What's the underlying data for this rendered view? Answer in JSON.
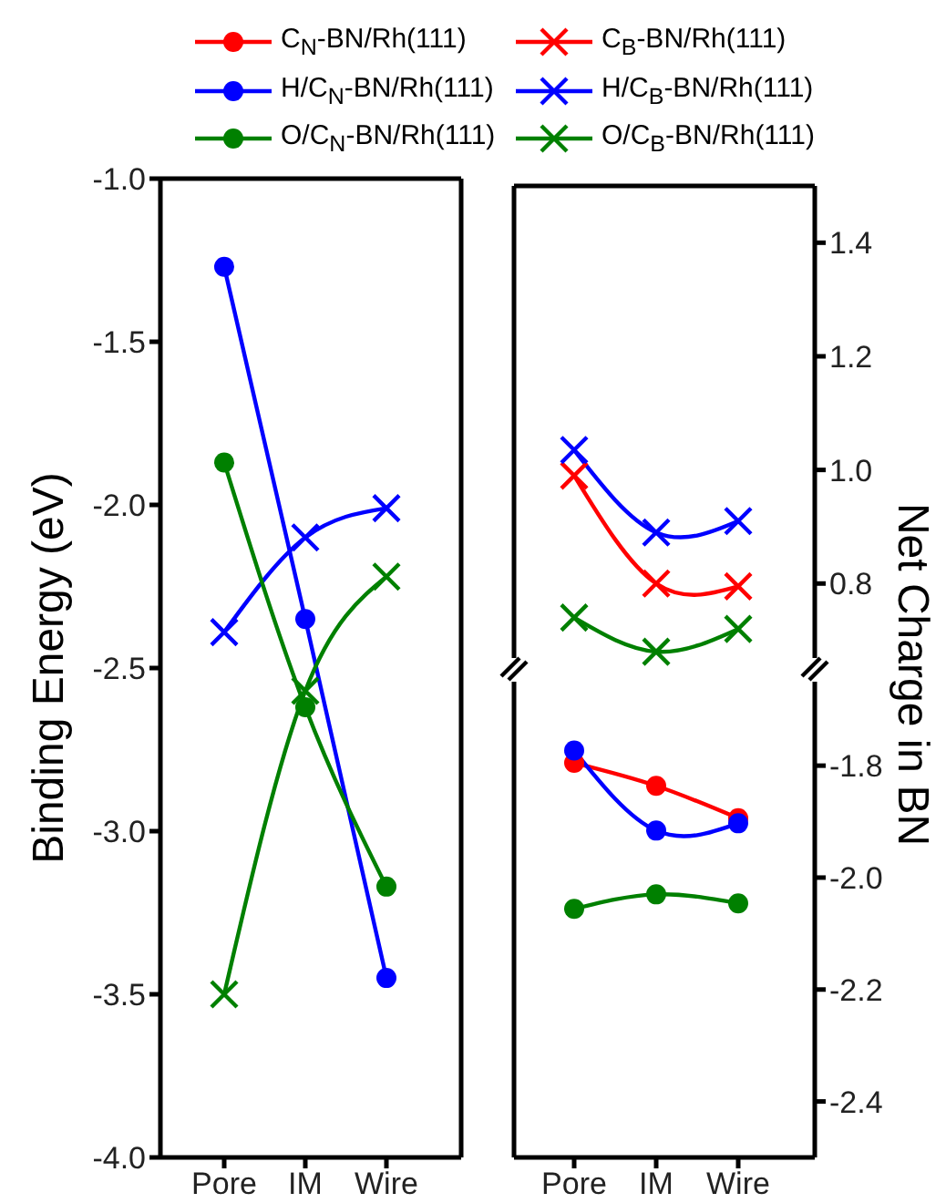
{
  "chart_data": [
    {
      "type": "line",
      "ylabel": "Binding Energy (eV)",
      "categories": [
        "Pore",
        "IM",
        "Wire"
      ],
      "ylim": [
        -4,
        -1
      ],
      "yticks": [
        {
          "value": -1,
          "label": "-1.0"
        },
        -1.5,
        {
          "value": -2,
          "label": "-2.0"
        },
        -2.5,
        {
          "value": -3,
          "label": "-3.0"
        },
        -3.5,
        {
          "value": -4,
          "label": "-4.0"
        }
      ],
      "grid": false,
      "line_style": "solid",
      "series": [
        {
          "color": "#0000ff",
          "marker": "circle",
          "values": [
            -1.27,
            -2.35,
            -3.45
          ]
        },
        {
          "color": "#0000ff",
          "marker": "cross",
          "values": [
            -2.39,
            -2.1,
            -2.01
          ]
        },
        {
          "color": "#008000",
          "marker": "circle",
          "values": [
            -1.87,
            -2.62,
            -3.17
          ]
        },
        {
          "color": "#008000",
          "marker": "cross",
          "values": [
            -3.5,
            -2.57,
            -2.22
          ]
        }
      ]
    },
    {
      "type": "line",
      "ylabel": "Net Charge in BN",
      "ylim": [
        0.64,
        1.5
      ],
      "yticks": [
        {
          "value": 0.8,
          "label": "0.8"
        },
        {
          "value": 1,
          "label": "1.0"
        },
        {
          "value": 1.2,
          "label": "1.2"
        },
        {
          "value": 1.4,
          "label": "1.4"
        }
      ],
      "tick_labels": "y",
      "grid": false,
      "legend": "top",
      "line_style": "solid",
      "series": [
        {
          "name": "C$_{B}$-BN/Rh(111)",
          "color": "#ff0000",
          "marker": "cross",
          "values": [
            0.99,
            0.8,
            0.795
          ]
        },
        {
          "name": "H/C$_{B}$-BN/Rh(111)",
          "color": "#0000ff",
          "marker": "cross",
          "values": [
            1.035,
            0.89,
            0.91
          ]
        },
        {
          "name": "O/C$_{B}$-BN/Rh(111)",
          "color": "#008000",
          "marker": "cross",
          "values": [
            0.74,
            0.68,
            0.72
          ]
        }
      ]
    },
    {
      "type": "line",
      "categories": [
        "Pore",
        "IM",
        "Wire"
      ],
      "ylim": [
        -2.5,
        -1.65
      ],
      "yticks": [
        -1.8,
        {
          "value": -2,
          "label": "-2.0"
        },
        -2.2,
        -2.4
      ],
      "grid": false,
      "legend": "top",
      "line_style": "solid",
      "series": [
        {
          "name": "C$_{N}$-BN/Rh(111)",
          "color": "#ff0000",
          "marker": "circle",
          "values": [
            -1.795,
            -1.836,
            -1.894
          ]
        },
        {
          "name": "H/C$_{N}$-BN/Rh(111)",
          "color": "#0000ff",
          "marker": "circle",
          "values": [
            -1.773,
            -1.916,
            -1.903
          ]
        },
        {
          "name": "O/C$_{N}$-BN/Rh(111)",
          "color": "#008000",
          "marker": "circle",
          "values": [
            -2.056,
            -2.03,
            -2.046
          ]
        }
      ]
    }
  ]
}
